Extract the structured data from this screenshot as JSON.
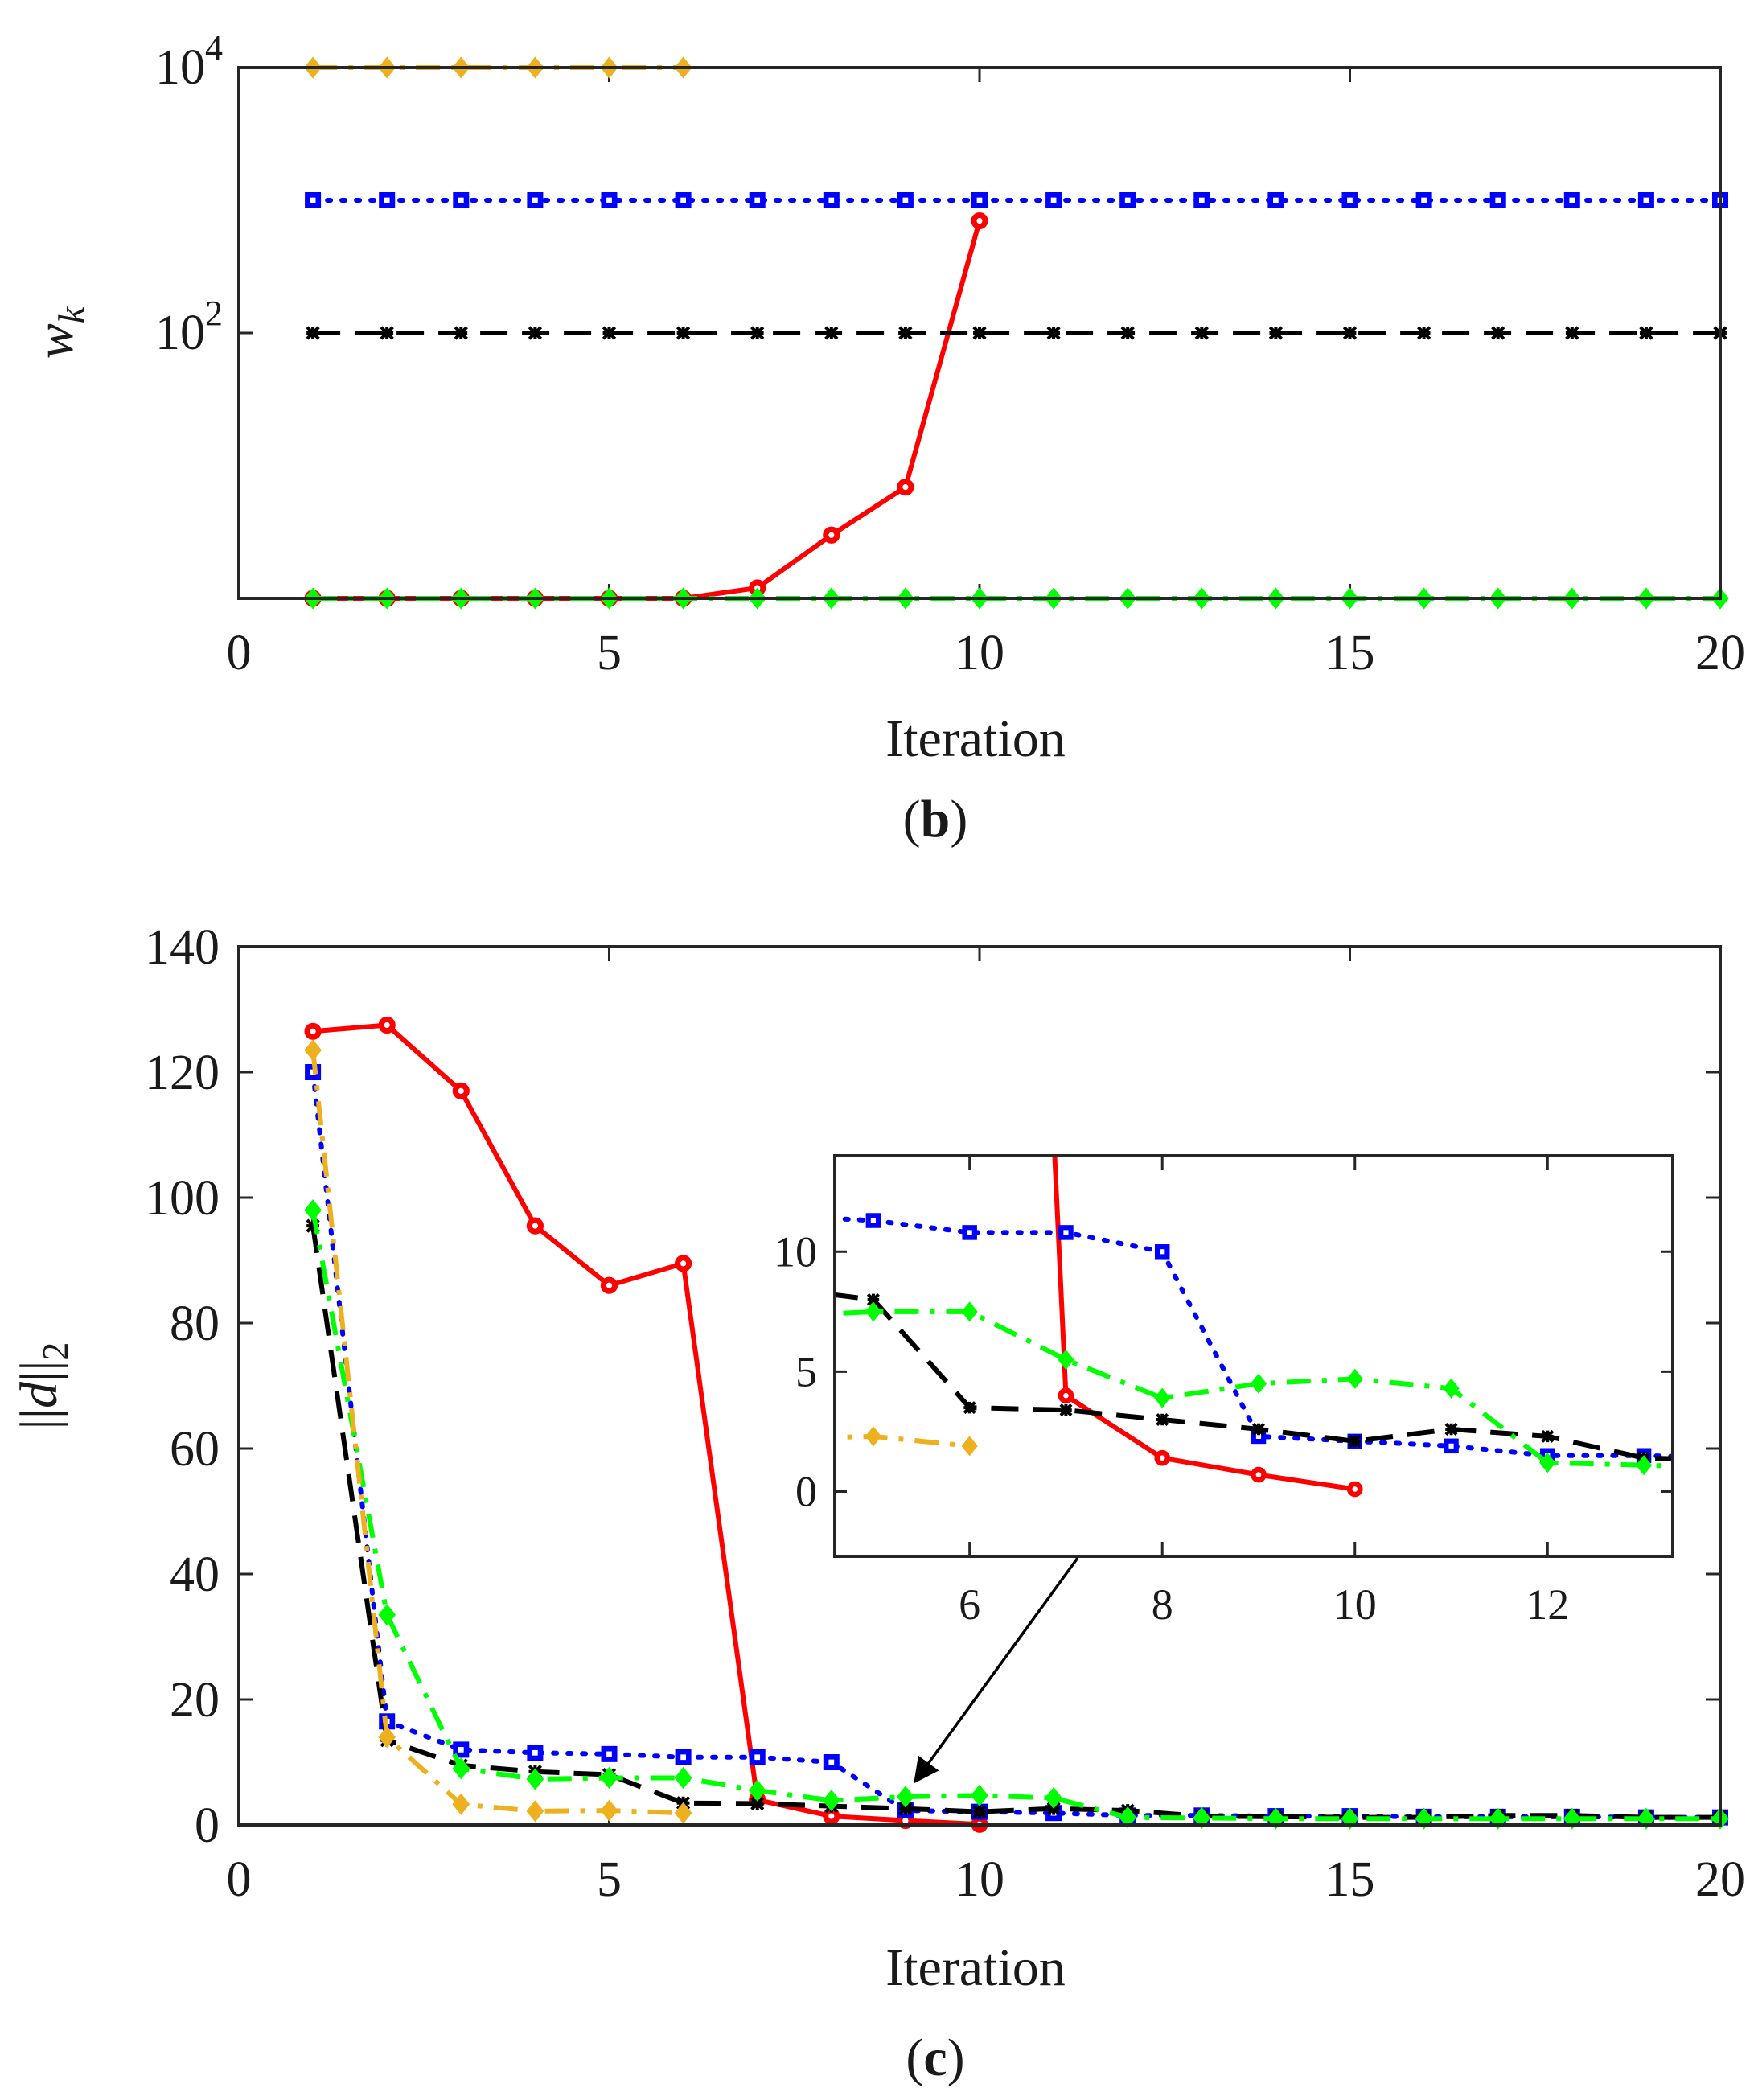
{
  "chart_data": [
    {
      "type": "line",
      "panel_label": "b",
      "caption_open": "(",
      "caption_close": ")",
      "xlabel": "Iteration",
      "ylabel_base": "w",
      "ylabel_sub": "k",
      "yscale": "log",
      "xlim": [
        0,
        20
      ],
      "ylim_log10": [
        0,
        4
      ],
      "xticks": [
        "0",
        "5",
        "10",
        "15",
        "20"
      ],
      "yticks": [
        {
          "base": "10",
          "exp": "2",
          "log10": 2
        },
        {
          "base": "10",
          "exp": "4",
          "log10": 4
        }
      ],
      "series": [
        {
          "id": "red",
          "color": "#ff0000",
          "dash": "solid",
          "marker": "circle",
          "x": [
            1,
            2,
            3,
            4,
            5,
            6,
            7,
            8,
            9,
            10
          ],
          "y": [
            1,
            1,
            1,
            1,
            1,
            1,
            1.2,
            3,
            6.9,
            700
          ]
        },
        {
          "id": "blue",
          "color": "#0000ff",
          "dash": "dotted",
          "marker": "square",
          "x": [
            1,
            2,
            3,
            4,
            5,
            6,
            7,
            8,
            9,
            10,
            11,
            12,
            13,
            14,
            15,
            16,
            17,
            18,
            19,
            20
          ],
          "y": [
            1000,
            1000,
            1000,
            1000,
            1000,
            1000,
            1000,
            1000,
            1000,
            1000,
            1000,
            1000,
            1000,
            1000,
            1000,
            1000,
            1000,
            1000,
            1000,
            1000
          ]
        },
        {
          "id": "black",
          "color": "#000000",
          "dash": "dashed",
          "marker": "star",
          "x": [
            1,
            2,
            3,
            4,
            5,
            6,
            7,
            8,
            9,
            10,
            11,
            12,
            13,
            14,
            15,
            16,
            17,
            18,
            19,
            20
          ],
          "y": [
            100,
            100,
            100,
            100,
            100,
            100,
            100,
            100,
            100,
            100,
            100,
            100,
            100,
            100,
            100,
            100,
            100,
            100,
            100,
            100
          ]
        },
        {
          "id": "green",
          "color": "#00ff00",
          "dash": "dashdot",
          "marker": "diamond",
          "x": [
            1,
            2,
            3,
            4,
            5,
            6,
            7,
            8,
            9,
            10,
            11,
            12,
            13,
            14,
            15,
            16,
            17,
            18,
            19,
            20
          ],
          "y": [
            1,
            1,
            1,
            1,
            1,
            1,
            1,
            1,
            1,
            1,
            1,
            1,
            1,
            1,
            1,
            1,
            1,
            1,
            1,
            1
          ]
        },
        {
          "id": "orange",
          "color": "#edb120",
          "dash": "dashdot",
          "marker": "diamond",
          "x": [
            1,
            2,
            3,
            4,
            5,
            6
          ],
          "y": [
            10000,
            10000,
            10000,
            10000,
            10000,
            10000
          ]
        }
      ]
    },
    {
      "type": "line",
      "panel_label": "c",
      "caption_open": "(",
      "caption_close": ")",
      "xlabel": "Iteration",
      "ylabel_var": "d",
      "ylabel_sub": "2",
      "xlim": [
        0,
        20
      ],
      "ylim": [
        0,
        140
      ],
      "xticks": [
        "0",
        "5",
        "10",
        "15",
        "20"
      ],
      "yticks": [
        "0",
        "20",
        "40",
        "60",
        "80",
        "100",
        "120",
        "140"
      ],
      "series": [
        {
          "id": "red",
          "color": "#ff0000",
          "dash": "solid",
          "marker": "circle",
          "x": [
            1,
            2,
            3,
            4,
            5,
            6,
            7,
            8,
            9,
            10
          ],
          "y": [
            126.5,
            127.5,
            117,
            95.5,
            86,
            89.5,
            4,
            1.4,
            0.7,
            0.1
          ]
        },
        {
          "id": "blue",
          "color": "#0000ff",
          "dash": "dotted",
          "marker": "square",
          "x": [
            1,
            2,
            3,
            4,
            5,
            6,
            7,
            8,
            9,
            10,
            11,
            12,
            13,
            14,
            15,
            16,
            17,
            18,
            19,
            20
          ],
          "y": [
            120,
            16.5,
            12,
            11.5,
            11.3,
            10.8,
            10.8,
            10,
            2.3,
            2.1,
            1.9,
            1.5,
            1.5,
            1.4,
            1.4,
            1.3,
            1.3,
            1.3,
            1.2,
            1.2
          ]
        },
        {
          "id": "black",
          "color": "#000000",
          "dash": "dashed",
          "marker": "star",
          "x": [
            1,
            2,
            3,
            4,
            5,
            6,
            7,
            8,
            9,
            10,
            11,
            12,
            13,
            14,
            15,
            16,
            17,
            18,
            19,
            20
          ],
          "y": [
            95.5,
            13.5,
            9.5,
            8.5,
            8,
            3.5,
            3.4,
            3,
            2.6,
            2.1,
            2.6,
            2.3,
            1.4,
            1.3,
            1.2,
            1.2,
            1.5,
            1.5,
            1.2,
            1.2
          ]
        },
        {
          "id": "green",
          "color": "#00ff00",
          "dash": "dashdot",
          "marker": "diamond",
          "x": [
            1,
            2,
            3,
            4,
            5,
            6,
            7,
            8,
            9,
            10,
            11,
            12,
            13,
            14,
            15,
            16,
            17,
            18,
            19,
            20
          ],
          "y": [
            98,
            33.5,
            9,
            7.3,
            7.5,
            7.5,
            5.5,
            3.9,
            4.5,
            4.7,
            4.3,
            1.2,
            1.1,
            1,
            1,
            1,
            1,
            1,
            1,
            1
          ]
        },
        {
          "id": "orange",
          "color": "#edb120",
          "dash": "dashdot",
          "marker": "diamond",
          "x": [
            1,
            2,
            3,
            4,
            5,
            6
          ],
          "y": [
            123.5,
            14,
            3.3,
            2.2,
            2.3,
            1.9
          ]
        }
      ],
      "inset": {
        "xlim": [
          4.6,
          13.3
        ],
        "ylim": [
          -2.7,
          14
        ],
        "xticks": [
          "6",
          "8",
          "10",
          "12"
        ],
        "yticks": [
          "0",
          "5",
          "10"
        ],
        "annotation": "arrow from inset to x = 9 region of main axes"
      }
    }
  ]
}
